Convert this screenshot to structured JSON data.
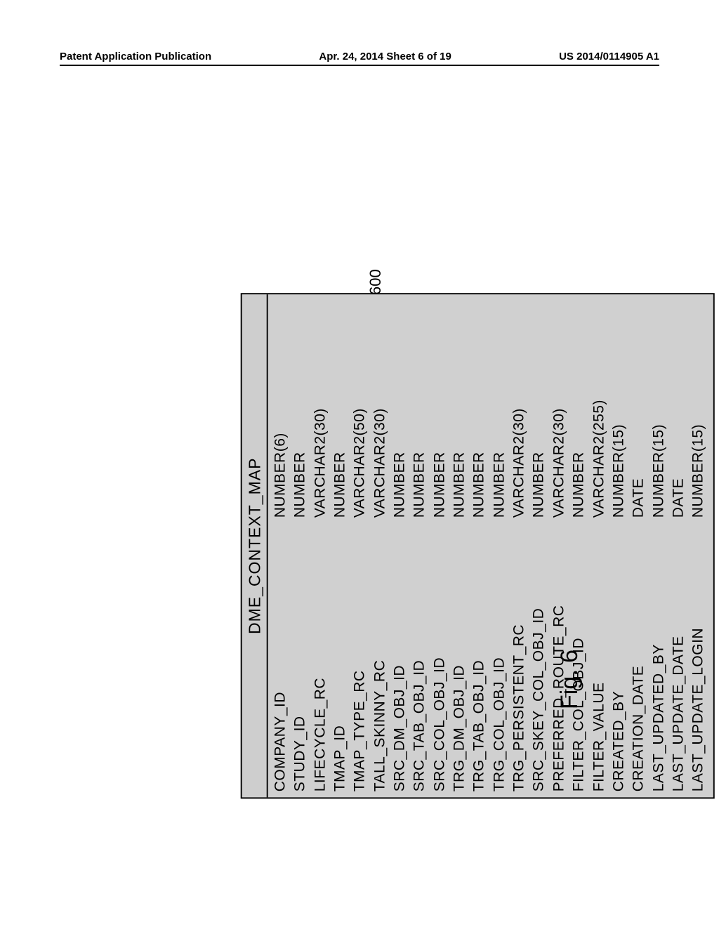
{
  "header": {
    "left": "Patent Application Publication",
    "center": "Apr. 24, 2014  Sheet 6 of 19",
    "right": "US 2014/0114905 A1"
  },
  "reference_number": "600",
  "figure_label": "Fig. 6",
  "table": {
    "title": "DME_CONTEXT_MAP",
    "title_fontsize": 23,
    "body_fontsize": 21,
    "background_color": "#d0d0d0",
    "border_color": "#000000",
    "text_color": "#000000",
    "col_name_width": 390,
    "rows": [
      {
        "name": "COMPANY_ID",
        "type": "NUMBER(6)"
      },
      {
        "name": "STUDY_ID",
        "type": "NUMBER"
      },
      {
        "name": "LIFECYCLE_RC",
        "type": "VARCHAR2(30)"
      },
      {
        "name": "TMAP_ID",
        "type": "NUMBER"
      },
      {
        "name": "TMAP_TYPE_RC",
        "type": "VARCHAR2(50)"
      },
      {
        "name": "TALL_SKINNY_RC",
        "type": "VARCHAR2(30)"
      },
      {
        "name": "SRC_DM_OBJ_ID",
        "type": "NUMBER"
      },
      {
        "name": "SRC_TAB_OBJ_ID",
        "type": "NUMBER"
      },
      {
        "name": "SRC_COL_OBJ_ID",
        "type": "NUMBER"
      },
      {
        "name": "TRG_DM_OBJ_ID",
        "type": "NUMBER"
      },
      {
        "name": "TRG_TAB_OBJ_ID",
        "type": "NUMBER"
      },
      {
        "name": "TRG_COL_OBJ_ID",
        "type": "NUMBER"
      },
      {
        "name": "TRG_PERSISTENT_RC",
        "type": "VARCHAR2(30)"
      },
      {
        "name": "SRC_SKEY_COL_OBJ_ID",
        "type": "NUMBER"
      },
      {
        "name": "PREFERRED_ROUTE_RC",
        "type": "VARCHAR2(30)"
      },
      {
        "name": "FILTER_COL_OBJ_ID",
        "type": "NUMBER"
      },
      {
        "name": "FILTER_VALUE",
        "type": "VARCHAR2(255)"
      },
      {
        "name": "CREATED_BY",
        "type": "NUMBER(15)"
      },
      {
        "name": "CREATION_DATE",
        "type": "DATE"
      },
      {
        "name": "LAST_UPDATED_BY",
        "type": "NUMBER(15)"
      },
      {
        "name": "LAST_UPDATE_DATE",
        "type": "DATE"
      },
      {
        "name": "LAST_UPDATE_LOGIN",
        "type": "NUMBER(15)"
      }
    ]
  }
}
